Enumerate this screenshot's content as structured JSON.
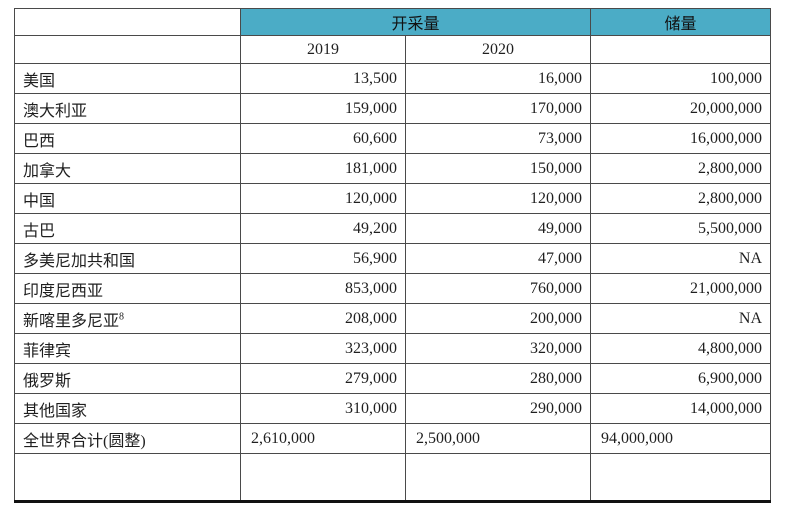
{
  "table": {
    "headers": {
      "production": "开采量",
      "reserves": "储量",
      "year1": "2019",
      "year2": "2020"
    },
    "rows": [
      {
        "country": "美国",
        "y2019": "13,500",
        "y2020": "16,000",
        "reserves": "100,000"
      },
      {
        "country": "澳大利亚",
        "y2019": "159,000",
        "y2020": "170,000",
        "reserves": "20,000,000"
      },
      {
        "country": "巴西",
        "y2019": "60,600",
        "y2020": "73,000",
        "reserves": "16,000,000"
      },
      {
        "country": "加拿大",
        "y2019": "181,000",
        "y2020": "150,000",
        "reserves": "2,800,000"
      },
      {
        "country": "中国",
        "y2019": "120,000",
        "y2020": "120,000",
        "reserves": "2,800,000"
      },
      {
        "country": "古巴",
        "y2019": "49,200",
        "y2020": "49,000",
        "reserves": "5,500,000"
      },
      {
        "country": "多美尼加共和国",
        "y2019": "56,900",
        "y2020": "47,000",
        "reserves": "NA"
      },
      {
        "country": "印度尼西亚",
        "y2019": "853,000",
        "y2020": "760,000",
        "reserves": "21,000,000"
      },
      {
        "country": "新喀里多尼亚",
        "footnote": "8",
        "y2019": "208,000",
        "y2020": "200,000",
        "reserves": "NA"
      },
      {
        "country": "菲律宾",
        "y2019": "323,000",
        "y2020": "320,000",
        "reserves": "4,800,000"
      },
      {
        "country": "俄罗斯",
        "y2019": "279,000",
        "y2020": "280,000",
        "reserves": "6,900,000"
      },
      {
        "country": "其他国家",
        "y2019": "310,000",
        "y2020": "290,000",
        "reserves": "14,000,000"
      },
      {
        "country": "全世界合计(圆整)",
        "y2019": "2,610,000",
        "y2020": "2,500,000",
        "reserves": "94,000,000",
        "align": "left"
      }
    ],
    "colors": {
      "header_bg": "#4bacc6",
      "border": "#4a4a4a",
      "bottom_border": "#111111"
    }
  }
}
